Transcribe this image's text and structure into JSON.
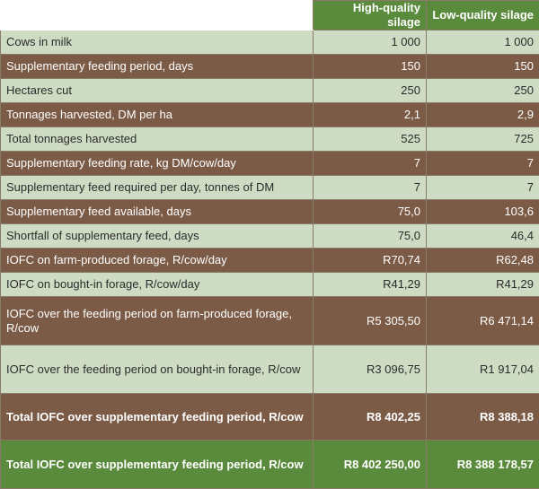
{
  "table": {
    "columns": [
      "",
      "High-quality silage",
      "Low-quality silage"
    ],
    "rows": [
      [
        "Cows in milk",
        "1 000",
        "1 000"
      ],
      [
        "Supplementary feeding period, days",
        "150",
        "150"
      ],
      [
        "Hectares cut",
        "250",
        "250"
      ],
      [
        "Tonnages harvested, DM per ha",
        "2,1",
        "2,9"
      ],
      [
        "Total tonnages harvested",
        "525",
        "725"
      ],
      [
        "Supplementary feeding rate, kg DM/cow/day",
        "7",
        "7"
      ],
      [
        "Supplementary feed required per day, tonnes of DM",
        "7",
        "7"
      ],
      [
        "Supplementary feed available, days",
        "75,0",
        "103,6"
      ],
      [
        "Shortfall of supplementary feed, days",
        "75,0",
        "46,4"
      ],
      [
        "IOFC on farm-produced forage, R/cow/day",
        "R70,74",
        "R62,48"
      ],
      [
        "IOFC on bought-in forage, R/cow/day",
        "R41,29",
        "R41,29"
      ],
      [
        "IOFC over the feeding period on farm-produced forage, R/cow",
        "R5 305,50",
        "R6 471,14"
      ],
      [
        "IOFC over the feeding period on bought-in forage, R/cow",
        "R3 096,75",
        "R1 917,04"
      ],
      [
        "Total IOFC over supplementary feeding period, R/cow",
        "R8 402,25",
        "R8 388,18"
      ],
      [
        "Total IOFC over supplementary feeding period, R/cow",
        "R8 402 250,00",
        "R8 388 178,57"
      ]
    ]
  },
  "colors": {
    "header_green": "#5a8b3c",
    "row_light": "#cfdcc4",
    "row_brown": "#7b5a46"
  }
}
